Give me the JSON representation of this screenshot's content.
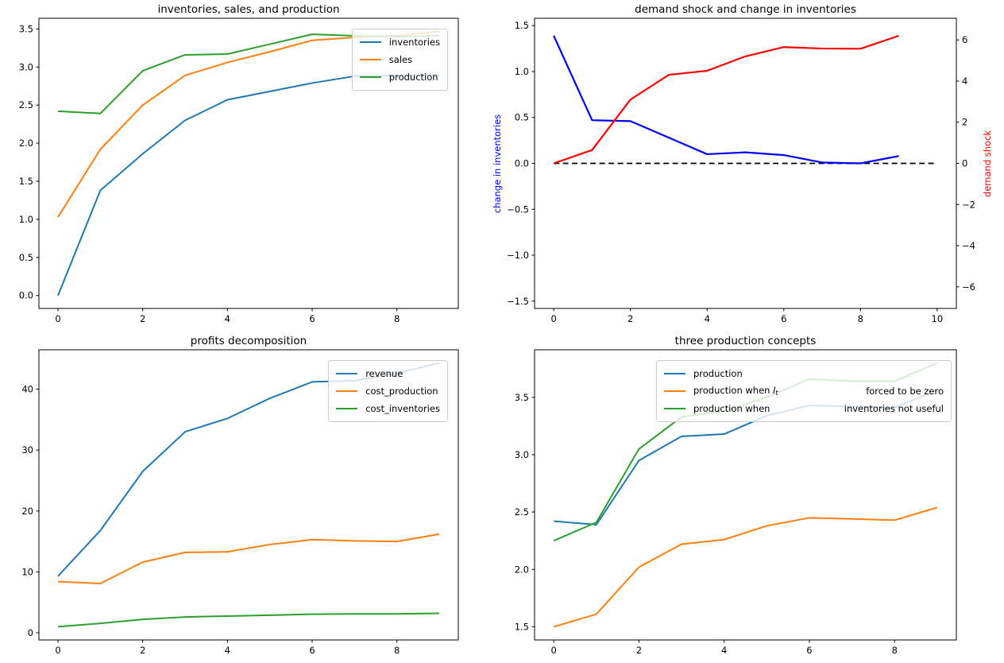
{
  "figure": {
    "background": "#ffffff"
  },
  "palette": {
    "mpl_blue": "#1f77b4",
    "mpl_orange": "#ff7f0e",
    "mpl_green": "#2ca02c",
    "pure_blue": "#0000ff",
    "pure_red": "#ff0000",
    "black": "#000000",
    "spine": "#000000",
    "legend_border": "#cccccc"
  },
  "chart_data": [
    {
      "id": "inventories-sales-production",
      "type": "line",
      "title": "inventories, sales, and production",
      "x": [
        0,
        1,
        2,
        3,
        4,
        5,
        6,
        7,
        8,
        9
      ],
      "xlim": [
        -0.45,
        9.45
      ],
      "ylim": [
        -0.17,
        3.64
      ],
      "grid": false,
      "xticks": [
        {
          "v": 0,
          "label": "0"
        },
        {
          "v": 2,
          "label": "2"
        },
        {
          "v": 4,
          "label": "4"
        },
        {
          "v": 6,
          "label": "6"
        },
        {
          "v": 8,
          "label": "8"
        }
      ],
      "yticks": [
        {
          "v": 0.0,
          "label": "0.0"
        },
        {
          "v": 0.5,
          "label": "0.5"
        },
        {
          "v": 1.0,
          "label": "1.0"
        },
        {
          "v": 1.5,
          "label": "1.5"
        },
        {
          "v": 2.0,
          "label": "2.0"
        },
        {
          "v": 2.5,
          "label": "2.5"
        },
        {
          "v": 3.0,
          "label": "3.0"
        },
        {
          "v": 3.5,
          "label": "3.5"
        }
      ],
      "series": [
        {
          "name": "inventories",
          "color": "#1f77b4",
          "width": 2,
          "values": [
            0.0,
            1.38,
            1.86,
            2.3,
            2.57,
            2.68,
            2.79,
            2.88,
            2.89,
            2.9
          ]
        },
        {
          "name": "sales",
          "color": "#ff7f0e",
          "width": 2,
          "values": [
            1.03,
            1.92,
            2.5,
            2.89,
            3.06,
            3.2,
            3.35,
            3.39,
            3.41,
            3.47
          ]
        },
        {
          "name": "production",
          "color": "#2ca02c",
          "width": 2,
          "values": [
            2.42,
            2.39,
            2.95,
            3.16,
            3.17,
            3.3,
            3.43,
            3.41,
            3.4,
            3.41
          ]
        }
      ],
      "legend": {
        "position": "upper right",
        "entries": [
          {
            "label": "inventories",
            "color": "#1f77b4"
          },
          {
            "label": "sales",
            "color": "#ff7f0e"
          },
          {
            "label": "production",
            "color": "#2ca02c"
          }
        ]
      }
    },
    {
      "id": "demand-shock-and-change-in-inventories",
      "type": "line",
      "title": "demand shock and change in inventories",
      "x": [
        0,
        1,
        2,
        3,
        4,
        5,
        6,
        7,
        8,
        9
      ],
      "xlim": [
        -0.5,
        10.5
      ],
      "ylim": [
        -1.58,
        1.58
      ],
      "grid": false,
      "left_axis": {
        "label": "change in inventories",
        "color": "#0000ff"
      },
      "right_axis": {
        "label": "demand shock",
        "color": "#ff0000",
        "lim": [
          -7.05,
          7.05
        ],
        "ticks": [
          {
            "v": -6,
            "label": "−6"
          },
          {
            "v": -4,
            "label": "−4"
          },
          {
            "v": -2,
            "label": "−2"
          },
          {
            "v": 0,
            "label": "0"
          },
          {
            "v": 2,
            "label": "2"
          },
          {
            "v": 4,
            "label": "4"
          },
          {
            "v": 6,
            "label": "6"
          }
        ]
      },
      "xticks": [
        {
          "v": 0,
          "label": "0"
        },
        {
          "v": 2,
          "label": "2"
        },
        {
          "v": 4,
          "label": "4"
        },
        {
          "v": 6,
          "label": "6"
        },
        {
          "v": 8,
          "label": "8"
        },
        {
          "v": 10,
          "label": "10"
        }
      ],
      "yticks": [
        {
          "v": -1.5,
          "label": "−1.5"
        },
        {
          "v": -1.0,
          "label": "−1.0"
        },
        {
          "v": -0.5,
          "label": "−0.5"
        },
        {
          "v": 0.0,
          "label": "0.0"
        },
        {
          "v": 0.5,
          "label": "0.5"
        },
        {
          "v": 1.0,
          "label": "1.0"
        },
        {
          "v": 1.5,
          "label": "1.5"
        }
      ],
      "series": [
        {
          "name": "zero line",
          "color": "#000000",
          "width": 1.8,
          "dash": "7 4.5",
          "x": [
            0,
            1,
            2,
            3,
            4,
            5,
            6,
            7,
            8,
            9,
            10
          ],
          "values": [
            0,
            0,
            0,
            0,
            0,
            0,
            0,
            0,
            0,
            0,
            0
          ]
        },
        {
          "name": "change in inventories",
          "color": "#0000ff",
          "width": 2.2,
          "values": [
            1.39,
            0.47,
            0.46,
            0.28,
            0.1,
            0.12,
            0.09,
            0.01,
            0.0,
            0.08
          ]
        },
        {
          "name": "demand shock",
          "color": "#ff0000",
          "width": 2.2,
          "axis": "right",
          "values": [
            0.0,
            0.65,
            3.1,
            4.3,
            4.5,
            5.2,
            5.65,
            5.58,
            5.57,
            6.2
          ]
        }
      ],
      "legend": null
    },
    {
      "id": "profits-decomposition",
      "type": "line",
      "title": "profits decomposition",
      "x": [
        0,
        1,
        2,
        3,
        4,
        5,
        6,
        7,
        8,
        9
      ],
      "xlim": [
        -0.45,
        9.45
      ],
      "ylim": [
        -1.17,
        46.47
      ],
      "grid": false,
      "xticks": [
        {
          "v": 0,
          "label": "0"
        },
        {
          "v": 2,
          "label": "2"
        },
        {
          "v": 4,
          "label": "4"
        },
        {
          "v": 6,
          "label": "6"
        },
        {
          "v": 8,
          "label": "8"
        }
      ],
      "yticks": [
        {
          "v": 0,
          "label": "0"
        },
        {
          "v": 10,
          "label": "10"
        },
        {
          "v": 20,
          "label": "20"
        },
        {
          "v": 30,
          "label": "30"
        },
        {
          "v": 40,
          "label": "40"
        }
      ],
      "series": [
        {
          "name": "revenue",
          "color": "#1f77b4",
          "width": 2,
          "values": [
            9.3,
            16.8,
            26.5,
            33.0,
            35.2,
            38.5,
            41.2,
            41.4,
            42.6,
            44.3
          ]
        },
        {
          "name": "cost_production",
          "color": "#ff7f0e",
          "width": 2,
          "values": [
            8.4,
            8.1,
            11.6,
            13.2,
            13.3,
            14.5,
            15.3,
            15.1,
            15.0,
            16.2
          ]
        },
        {
          "name": "cost_inventories",
          "color": "#2ca02c",
          "width": 2,
          "values": [
            1.0,
            1.55,
            2.2,
            2.6,
            2.75,
            2.9,
            3.05,
            3.1,
            3.1,
            3.2
          ]
        }
      ],
      "legend": {
        "position": "upper right",
        "entries": [
          {
            "label": "revenue",
            "color": "#1f77b4"
          },
          {
            "label": "cost_production",
            "color": "#ff7f0e"
          },
          {
            "label": "cost_inventories",
            "color": "#2ca02c"
          }
        ]
      }
    },
    {
      "id": "three-production-concepts",
      "type": "line",
      "title": "three production concepts",
      "x": [
        0,
        1,
        2,
        3,
        4,
        5,
        6,
        7,
        8,
        9
      ],
      "xlim": [
        -0.45,
        9.45
      ],
      "ylim": [
        1.385,
        3.915
      ],
      "grid": false,
      "xticks": [
        {
          "v": 0,
          "label": "0"
        },
        {
          "v": 2,
          "label": "2"
        },
        {
          "v": 4,
          "label": "4"
        },
        {
          "v": 6,
          "label": "6"
        },
        {
          "v": 8,
          "label": "8"
        }
      ],
      "yticks": [
        {
          "v": 1.5,
          "label": "1.5"
        },
        {
          "v": 2.0,
          "label": "2.0"
        },
        {
          "v": 2.5,
          "label": "2.5"
        },
        {
          "v": 3.0,
          "label": "3.0"
        },
        {
          "v": 3.5,
          "label": "3.5"
        }
      ],
      "series": [
        {
          "name": "production",
          "color": "#1f77b4",
          "width": 2,
          "values": [
            2.42,
            2.39,
            2.95,
            3.16,
            3.18,
            3.34,
            3.43,
            3.42,
            3.41,
            3.56
          ]
        },
        {
          "name": "production when I_t forced to be zero",
          "color": "#ff7f0e",
          "width": 2,
          "values": [
            1.5,
            1.61,
            2.02,
            2.22,
            2.26,
            2.38,
            2.45,
            2.44,
            2.43,
            2.54
          ]
        },
        {
          "name": "production when inventories not useful",
          "color": "#2ca02c",
          "width": 2,
          "values": [
            2.25,
            2.41,
            3.05,
            3.33,
            3.38,
            3.5,
            3.66,
            3.64,
            3.64,
            3.8
          ]
        }
      ],
      "legend": {
        "position": "upper right wide",
        "entries": [
          {
            "label": "production",
            "color": "#1f77b4"
          },
          {
            "label_pre": "production when ",
            "math": "I",
            "math_sub": "t",
            "label_right": "forced to be zero",
            "color": "#ff7f0e"
          },
          {
            "label_pre": "production when",
            "label_right": "inventories not useful",
            "color": "#2ca02c"
          }
        ]
      }
    }
  ]
}
